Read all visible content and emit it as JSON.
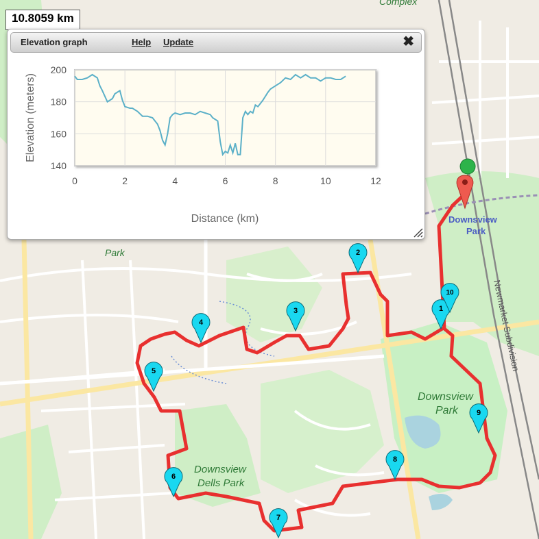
{
  "distance_label": "10.8059 km",
  "panel": {
    "title": "Elevation graph",
    "help_label": "Help",
    "update_label": "Update",
    "close_glyph": "✖"
  },
  "map_labels": {
    "complex": "Complex",
    "park_upper": "Park",
    "downsview_park_top": "Downsview",
    "downsview_park_top2": "Park",
    "downsview_park_mid": "Downsview",
    "downsview_park_mid2": "Park",
    "dells_park": "Downsview",
    "dells_park2": "Dells Park",
    "rail": "Newmarket Subdivision"
  },
  "markers": [
    "1",
    "2",
    "3",
    "4",
    "5",
    "6",
    "7",
    "8",
    "9",
    "10"
  ],
  "colors": {
    "route": "#e8302f",
    "marker": "#19d8f0",
    "graph_line": "#5bb0c8",
    "graph_bg": "#fffcf0"
  },
  "chart_data": {
    "type": "line",
    "title": "",
    "xlabel": "Distance (km)",
    "ylabel": "Elevation (meters)",
    "xlim": [
      0,
      12
    ],
    "ylim": [
      140,
      200
    ],
    "xticks": [
      "0",
      "2",
      "4",
      "6",
      "8",
      "10",
      "12"
    ],
    "yticks": [
      "140",
      "160",
      "180",
      "200"
    ],
    "grid": true,
    "x": [
      0,
      0.1,
      0.3,
      0.5,
      0.7,
      0.9,
      1.0,
      1.1,
      1.3,
      1.5,
      1.6,
      1.8,
      1.9,
      2.0,
      2.2,
      2.3,
      2.5,
      2.7,
      2.9,
      3.1,
      3.3,
      3.4,
      3.5,
      3.6,
      3.7,
      3.8,
      3.9,
      4.0,
      4.2,
      4.4,
      4.6,
      4.8,
      5.0,
      5.2,
      5.4,
      5.5,
      5.7,
      5.8,
      5.9,
      6.0,
      6.1,
      6.2,
      6.3,
      6.4,
      6.5,
      6.6,
      6.7,
      6.8,
      6.9,
      7.0,
      7.1,
      7.2,
      7.3,
      7.5,
      7.7,
      7.8,
      8.0,
      8.2,
      8.4,
      8.6,
      8.8,
      9.0,
      9.2,
      9.4,
      9.6,
      9.8,
      10.0,
      10.2,
      10.4,
      10.6,
      10.8
    ],
    "y": [
      196,
      194,
      194,
      195,
      197,
      195,
      190,
      187,
      180,
      182,
      185,
      187,
      181,
      177,
      176,
      176,
      174,
      171,
      171,
      170,
      166,
      162,
      156,
      153,
      160,
      170,
      172,
      173,
      172,
      173,
      173,
      172,
      174,
      173,
      172,
      170,
      168,
      155,
      147,
      149,
      148,
      153,
      148,
      154,
      147,
      147,
      170,
      174,
      172,
      174,
      173,
      178,
      177,
      181,
      186,
      188,
      190,
      192,
      195,
      194,
      197,
      195,
      197,
      195,
      195,
      193,
      195,
      195,
      194,
      194,
      196
    ]
  }
}
